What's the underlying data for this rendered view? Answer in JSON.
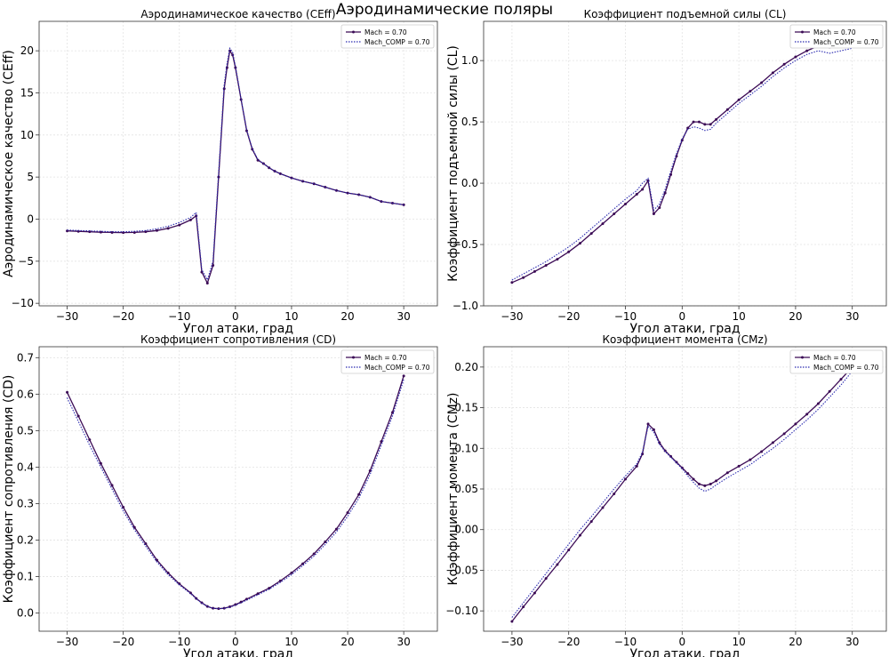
{
  "figure": {
    "title": "Аэродинамические поляры"
  },
  "colors": {
    "solid": "#3b0a55",
    "dotted": "#2b2bb0",
    "grid": "#e3e3e3",
    "axis": "#333333"
  },
  "chart_data": [
    {
      "type": "line",
      "title": "Аэродинамическое качество (CEff)",
      "xlabel": "Угол атаки, град",
      "ylabel": "Аэродинамическое качество (CEff)",
      "xlim": [
        -35,
        36
      ],
      "ylim": [
        -10.3,
        23.5
      ],
      "xticks": [
        -30,
        -20,
        -10,
        0,
        10,
        20,
        30
      ],
      "yticks": [
        -10,
        -5,
        0,
        5,
        10,
        15,
        20
      ],
      "ytick_labels": [
        "−10",
        "−5",
        "0",
        "5",
        "10",
        "15",
        "20"
      ],
      "xtick_labels": [
        "−30",
        "−20",
        "−10",
        "0",
        "10",
        "20",
        "30"
      ],
      "legend_position": "top-right",
      "series": [
        {
          "name": "Mach = 0.70",
          "style": "solid-marker",
          "x": [
            -30,
            -28,
            -26,
            -24,
            -22,
            -20,
            -18,
            -16,
            -14,
            -12,
            -10,
            -8,
            -7,
            -6,
            -5,
            -4,
            -3,
            -2,
            -1.5,
            -1,
            -0.5,
            0,
            1,
            2,
            3,
            4,
            5,
            6,
            7,
            8,
            10,
            12,
            14,
            16,
            18,
            20,
            22,
            24,
            26,
            28,
            30
          ],
          "y": [
            -1.4,
            -1.45,
            -1.5,
            -1.55,
            -1.58,
            -1.6,
            -1.58,
            -1.5,
            -1.35,
            -1.1,
            -0.7,
            -0.1,
            0.4,
            -6.3,
            -7.6,
            -5.5,
            5,
            15.5,
            18,
            20,
            19.5,
            18,
            14.2,
            10.5,
            8.3,
            7,
            6.6,
            6.1,
            5.7,
            5.4,
            4.9,
            4.5,
            4.2,
            3.8,
            3.4,
            3.1,
            2.9,
            2.6,
            2.1,
            1.9,
            1.7
          ]
        },
        {
          "name": "Mach_COMP = 0.70",
          "style": "dotted",
          "x": [
            -30,
            -28,
            -26,
            -24,
            -22,
            -20,
            -18,
            -16,
            -14,
            -12,
            -10,
            -8,
            -7,
            -6,
            -5,
            -4,
            -3,
            -2,
            -1.5,
            -1,
            -0.5,
            0,
            1,
            2,
            3,
            4,
            5,
            6,
            7,
            8,
            10,
            12,
            14,
            16,
            18,
            20,
            22,
            24,
            26,
            28,
            30
          ],
          "y": [
            -1.3,
            -1.35,
            -1.4,
            -1.45,
            -1.5,
            -1.5,
            -1.45,
            -1.35,
            -1.15,
            -0.85,
            -0.4,
            0.2,
            0.8,
            -6,
            -7.2,
            -5,
            5.5,
            16,
            18.5,
            20.3,
            19.8,
            18.2,
            14.3,
            10.6,
            8.4,
            7.1,
            6.6,
            6.1,
            5.7,
            5.4,
            4.9,
            4.5,
            4.2,
            3.8,
            3.4,
            3.1,
            2.9,
            2.6,
            2.1,
            1.9,
            1.7
          ]
        }
      ]
    },
    {
      "type": "line",
      "title": "Коэффициент подъемной силы (CL)",
      "xlabel": "Угол атаки, град",
      "ylabel": "Коэффициент подъемной силы (CL)",
      "xlim": [
        -35,
        36
      ],
      "ylim": [
        -1.0,
        1.32
      ],
      "xticks": [
        -30,
        -20,
        -10,
        0,
        10,
        20,
        30
      ],
      "yticks": [
        -1.0,
        -0.5,
        0.0,
        0.5,
        1.0
      ],
      "ytick_labels": [
        "−1.0",
        "−0.5",
        "0.0",
        "0.5",
        "1.0"
      ],
      "xtick_labels": [
        "−30",
        "−20",
        "−10",
        "0",
        "10",
        "20",
        "30"
      ],
      "legend_position": "top-right",
      "series": [
        {
          "name": "Mach = 0.70",
          "style": "solid-marker",
          "x": [
            -30,
            -28,
            -26,
            -24,
            -22,
            -20,
            -18,
            -16,
            -14,
            -12,
            -10,
            -8,
            -7,
            -6,
            -5,
            -4,
            -3,
            -2,
            -1,
            0,
            1,
            2,
            3,
            4,
            5,
            6,
            8,
            10,
            12,
            14,
            16,
            18,
            20,
            22,
            24,
            26,
            28,
            30
          ],
          "y": [
            -0.81,
            -0.77,
            -0.72,
            -0.67,
            -0.62,
            -0.56,
            -0.49,
            -0.41,
            -0.33,
            -0.25,
            -0.17,
            -0.09,
            -0.05,
            0.02,
            -0.25,
            -0.2,
            -0.08,
            0.07,
            0.22,
            0.35,
            0.45,
            0.5,
            0.5,
            0.48,
            0.48,
            0.52,
            0.6,
            0.68,
            0.75,
            0.82,
            0.9,
            0.97,
            1.03,
            1.08,
            1.12,
            1.11,
            1.12,
            1.13
          ]
        },
        {
          "name": "Mach_COMP = 0.70",
          "style": "dotted",
          "x": [
            -30,
            -28,
            -26,
            -24,
            -22,
            -20,
            -18,
            -16,
            -14,
            -12,
            -10,
            -8,
            -7,
            -6,
            -5,
            -4,
            -3,
            -2,
            -1,
            0,
            1,
            2,
            3,
            4,
            5,
            6,
            8,
            10,
            12,
            14,
            16,
            18,
            20,
            22,
            24,
            26,
            28,
            30
          ],
          "y": [
            -0.79,
            -0.74,
            -0.69,
            -0.64,
            -0.58,
            -0.52,
            -0.45,
            -0.37,
            -0.29,
            -0.21,
            -0.13,
            -0.06,
            0.0,
            0.04,
            -0.22,
            -0.17,
            -0.05,
            0.1,
            0.24,
            0.36,
            0.44,
            0.46,
            0.45,
            0.43,
            0.44,
            0.49,
            0.57,
            0.65,
            0.72,
            0.79,
            0.87,
            0.94,
            1.0,
            1.05,
            1.08,
            1.06,
            1.08,
            1.1
          ]
        }
      ]
    },
    {
      "type": "line",
      "title": "Коэффициент сопротивления (CD)",
      "xlabel": "Угол атаки, град",
      "ylabel": "Коэффициент сопротивления (CD)",
      "xlim": [
        -35,
        36
      ],
      "ylim": [
        -0.05,
        0.73
      ],
      "xticks": [
        -30,
        -20,
        -10,
        0,
        10,
        20,
        30
      ],
      "yticks": [
        0.0,
        0.1,
        0.2,
        0.3,
        0.4,
        0.5,
        0.6,
        0.7
      ],
      "ytick_labels": [
        "0.0",
        "0.1",
        "0.2",
        "0.3",
        "0.4",
        "0.5",
        "0.6",
        "0.7"
      ],
      "xtick_labels": [
        "−30",
        "−20",
        "−10",
        "0",
        "10",
        "20",
        "30"
      ],
      "legend_position": "top-right",
      "series": [
        {
          "name": "Mach = 0.70",
          "style": "solid-marker",
          "x": [
            -30,
            -28,
            -26,
            -24,
            -22,
            -20,
            -18,
            -16,
            -14,
            -12,
            -10,
            -8,
            -7,
            -6,
            -5,
            -4,
            -3,
            -2,
            -1,
            0,
            1,
            2,
            4,
            6,
            8,
            10,
            12,
            14,
            16,
            18,
            20,
            22,
            24,
            26,
            28,
            30
          ],
          "y": [
            0.605,
            0.54,
            0.475,
            0.41,
            0.35,
            0.29,
            0.235,
            0.19,
            0.145,
            0.11,
            0.08,
            0.055,
            0.04,
            0.028,
            0.018,
            0.013,
            0.012,
            0.013,
            0.017,
            0.023,
            0.03,
            0.038,
            0.053,
            0.068,
            0.088,
            0.11,
            0.135,
            0.162,
            0.195,
            0.23,
            0.275,
            0.325,
            0.39,
            0.47,
            0.55,
            0.65
          ]
        },
        {
          "name": "Mach_COMP = 0.70",
          "style": "dotted",
          "x": [
            -30,
            -28,
            -26,
            -24,
            -22,
            -20,
            -18,
            -16,
            -14,
            -12,
            -10,
            -8,
            -7,
            -6,
            -5,
            -4,
            -3,
            -2,
            -1,
            0,
            1,
            2,
            4,
            6,
            8,
            10,
            12,
            14,
            16,
            18,
            20,
            22,
            24,
            26,
            28,
            30
          ],
          "y": [
            0.59,
            0.525,
            0.46,
            0.4,
            0.34,
            0.28,
            0.228,
            0.183,
            0.14,
            0.105,
            0.077,
            0.053,
            0.039,
            0.027,
            0.018,
            0.013,
            0.012,
            0.013,
            0.016,
            0.021,
            0.028,
            0.035,
            0.05,
            0.065,
            0.084,
            0.105,
            0.13,
            0.156,
            0.188,
            0.222,
            0.265,
            0.315,
            0.38,
            0.46,
            0.54,
            0.64
          ]
        }
      ]
    },
    {
      "type": "line",
      "title": "Коэффициент момента (CMz)",
      "xlabel": "Угол атаки, град",
      "ylabel": "Коэффициент момента (CMz)",
      "xlim": [
        -35,
        36
      ],
      "ylim": [
        -0.125,
        0.225
      ],
      "xticks": [
        -30,
        -20,
        -10,
        0,
        10,
        20,
        30
      ],
      "yticks": [
        -0.1,
        -0.05,
        0.0,
        0.05,
        0.1,
        0.15,
        0.2
      ],
      "ytick_labels": [
        "−0.10",
        "−0.05",
        "0.00",
        "0.05",
        "0.10",
        "0.15",
        "0.20"
      ],
      "xtick_labels": [
        "−30",
        "−20",
        "−10",
        "0",
        "10",
        "20",
        "30"
      ],
      "legend_position": "top-right",
      "series": [
        {
          "name": "Mach = 0.70",
          "style": "solid-marker",
          "x": [
            -30,
            -28,
            -26,
            -24,
            -22,
            -20,
            -18,
            -16,
            -14,
            -12,
            -10,
            -8,
            -7,
            -6,
            -5,
            -4,
            -3,
            -2,
            -1,
            0,
            1,
            2,
            3,
            4,
            5,
            6,
            8,
            10,
            12,
            14,
            16,
            18,
            20,
            22,
            24,
            26,
            28,
            30
          ],
          "y": [
            -0.113,
            -0.095,
            -0.078,
            -0.06,
            -0.043,
            -0.025,
            -0.007,
            0.01,
            0.027,
            0.044,
            0.062,
            0.078,
            0.093,
            0.13,
            0.123,
            0.107,
            0.097,
            0.09,
            0.083,
            0.076,
            0.069,
            0.062,
            0.056,
            0.054,
            0.056,
            0.06,
            0.07,
            0.078,
            0.086,
            0.096,
            0.107,
            0.118,
            0.13,
            0.142,
            0.155,
            0.17,
            0.185,
            0.2
          ]
        },
        {
          "name": "Mach_COMP = 0.70",
          "style": "dotted",
          "x": [
            -30,
            -28,
            -26,
            -24,
            -22,
            -20,
            -18,
            -16,
            -14,
            -12,
            -10,
            -8,
            -7,
            -6,
            -5,
            -4,
            -3,
            -2,
            -1,
            0,
            1,
            2,
            3,
            4,
            5,
            6,
            8,
            10,
            12,
            14,
            16,
            18,
            20,
            22,
            24,
            26,
            28,
            30
          ],
          "y": [
            -0.108,
            -0.09,
            -0.072,
            -0.054,
            -0.036,
            -0.018,
            0.0,
            0.016,
            0.033,
            0.05,
            0.066,
            0.081,
            0.095,
            0.127,
            0.12,
            0.105,
            0.096,
            0.089,
            0.082,
            0.075,
            0.066,
            0.058,
            0.051,
            0.047,
            0.05,
            0.055,
            0.064,
            0.072,
            0.08,
            0.09,
            0.1,
            0.111,
            0.123,
            0.135,
            0.148,
            0.163,
            0.178,
            0.195
          ]
        }
      ]
    }
  ]
}
